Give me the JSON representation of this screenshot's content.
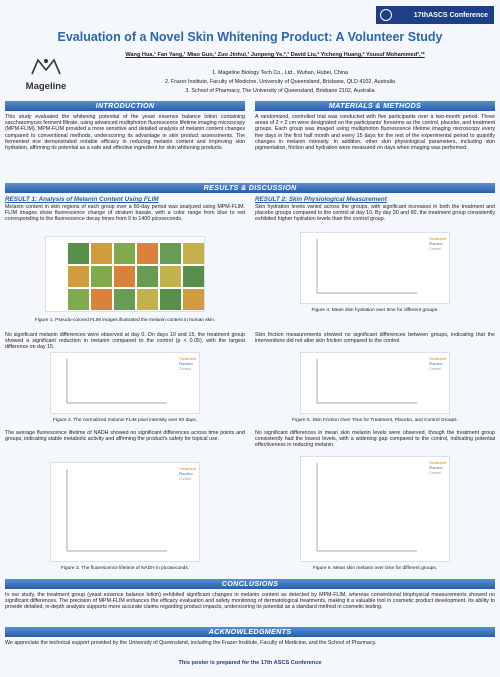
{
  "header": {
    "conference": "17thASCS Conference",
    "title": "Evaluation of a Novel Skin Whitening Product: A Volunteer Study",
    "authors": "Wang Hua,¹ Fan Yang,¹ Miao Guo,¹ Zuo Jinhui,¹ Junpeng Ye,²,³ David Liu,² Yicheng Huang,² Yousuf Mohammed²,³*",
    "logo": "Mageline",
    "affiliations": [
      "1. Mageline Biology Tech Co., Ltd., Wuhan, Hubei, China",
      "2. Frazer Institute, Faculty of Medicine, University of Queensland, Brisbane, QLD 4102, Australia",
      "3. School of Pharmacy, The University of Queensland, Brisbane 2102, Australia"
    ]
  },
  "introduction": {
    "heading": "INTRODUCTION",
    "text": "This study evaluated the whitening potential of the yeast essence balance lotion containing saccharomyces ferment filtrate, using advanced multiphoton fluorescence lifetime imaging microscopy (MPM-FLIM). MPM-FLIM provided a more sensitive and detailed analysis of melanin content changes compared to conventional methods, underscoring its advantage in skin product assessments. The fermented rice demonstrated notable efficacy in reducing melanin content and improving skin hydration, affirming its potential as a safe and effective ingredient for skin whitening products."
  },
  "methods": {
    "heading": "MATERIALS & METHODS",
    "text": "A randomized, controlled trial was conducted with five participants over a two-month period. Three areas of 2 × 2 cm were designated on the participants' forearms as the control, placebo, and treatment groups. Each group was imaged using multiphoton fluorescence lifetime imaging microscopy every five days in the first half month and every 15 days for the rest of the experimental period to quantify changes in melanin intensity. In addition, other skin physiological parameters, including skin pigmentation, friction and hydration were measured on days when imaging was performed."
  },
  "results": {
    "heading": "RESULTS & DISCUSSION",
    "result1": {
      "heading": "RESULT 1: Analysis of Melanin Content Using FLIM",
      "paragraphs": [
        "Melanin content in skin regions of each group over a 60-day period was analyzed using MPM-FLIM. FLIM images show fluorescence change of stratum basale, with a color range from blue to red corresponding to the fluorescence decay times from 0 to 1400 picoseconds.",
        "No significant melanin differences were observed at day 0. On days 10 and 15, the treatment group showed a significant reduction in melanin compared to the control (p < 0.05), with the largest difference on day 15.",
        "The average fluorescence lifetime of NADH showed no significant differences across time points and groups, indicating stable metabolic activity and affirming the product's safety for topical use."
      ],
      "figures": [
        "Figure 1. Pseudo-colored FLIM images illustrated the melanin content in human skin.",
        "Figure 2. The normalized melanin FLIM pixel intensity over 60 days.",
        "Figure 3. The fluorescence lifetime of NADH in picoseconds."
      ]
    },
    "result2": {
      "heading": "RESULT 2: Skin Physiological Measurement",
      "paragraphs": [
        "Skin hydration levels varied across the groups, with significant increases in both the treatment and placebo groups compared to the control at day 10. By day 30 and 60, the treatment group consistently exhibited higher hydration levels than the control group.",
        "Skin friction measurements showed no significant differences between groups, indicating that the interventions did not alter skin friction compared to the control.",
        "No significant differences in mean skin melanin levels were observed, though the treatment group consistently had the lowest levels, with a widening gap compared to the control, indicating potential effectiveness in reducing melanin."
      ],
      "figures": [
        "Figure 4. Mean skin hydration over time for different groups.",
        "Figure 5. Skin Friction Over Time for Treatment, Placebo, and Control Groups.",
        "Figure 6. Mean skin melanin over time for different groups."
      ]
    },
    "legend": [
      "Treatment",
      "Placebo",
      "Control"
    ]
  },
  "conclusions": {
    "heading": "CONCLUSIONS",
    "text": "In our study, the treatment group (yeast essence balance lotion) exhibited significant changes in melanin content as detected by MPM-FLIM, whereas conventional biophysical measurements showed no significant differences. The precision of MPM-FLIM enhances the efficacy evaluation and safety monitoring of dermatological treatments, making it a valuable tool in cosmetic product development. Its ability to provide detailed, in-depth analysis supports more accurate claims regarding product impacts, underscoring its potential as a standard method in cosmetic testing."
  },
  "acknowledgments": {
    "heading": "ACKNOWLEDGMENTS",
    "text": "We appreciate the technical support provided by the University of Queensland, including the Frazer Institute, Faculty of Medicine, and the School of Pharmacy."
  },
  "footer": "This poster is prepared for the 17th ASCS Conference"
}
